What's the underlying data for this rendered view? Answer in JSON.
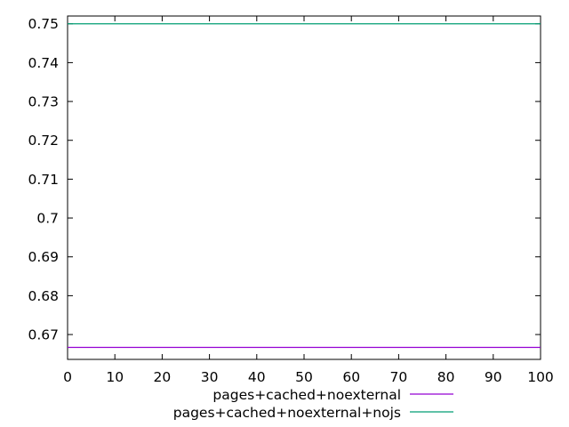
{
  "chart_data": {
    "type": "line",
    "title": "",
    "xlabel": "",
    "ylabel": "",
    "xlim": [
      0,
      100
    ],
    "ylim": [
      0.6636,
      0.752
    ],
    "x_ticks": [
      0,
      10,
      20,
      30,
      40,
      50,
      60,
      70,
      80,
      90,
      100
    ],
    "x_tick_labels": [
      "0",
      "10",
      "20",
      "30",
      "40",
      "50",
      "60",
      "70",
      "80",
      "90",
      "100"
    ],
    "y_ticks": [
      0.67,
      0.68,
      0.69,
      0.7,
      0.71,
      0.72,
      0.73,
      0.74,
      0.75
    ],
    "y_tick_labels": [
      "0.67",
      "0.68",
      "0.69",
      "0.7",
      "0.71",
      "0.72",
      "0.73",
      "0.74",
      "0.75"
    ],
    "grid": false,
    "legend_position": "bottom",
    "series": [
      {
        "name": "pages+cached+noexternal",
        "color": "#9400d3",
        "x": [
          0,
          100
        ],
        "y": [
          0.6667,
          0.6667
        ]
      },
      {
        "name": "pages+cached+noexternal+nojs",
        "color": "#009e73",
        "x": [
          0,
          100
        ],
        "y": [
          0.75,
          0.75
        ]
      }
    ]
  }
}
